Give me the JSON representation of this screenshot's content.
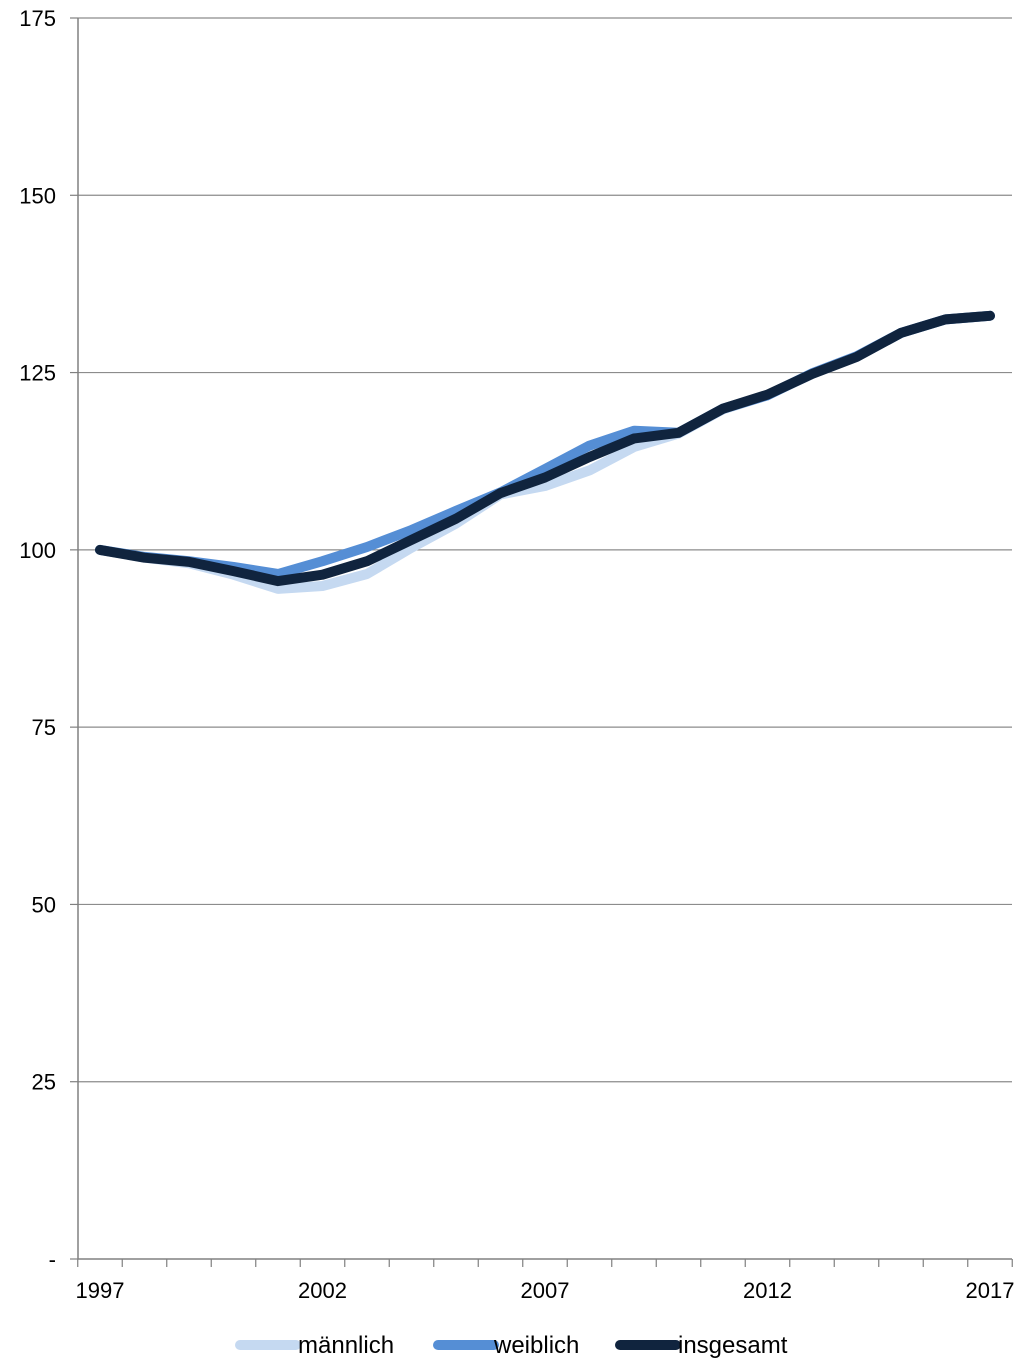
{
  "chart_data": {
    "type": "line",
    "x": [
      1997,
      1998,
      1999,
      2000,
      2001,
      2002,
      2003,
      2004,
      2005,
      2006,
      2007,
      2008,
      2009,
      2010,
      2011,
      2012,
      2013,
      2014,
      2015,
      2016,
      2017
    ],
    "x_tick_labels": [
      "1997",
      "2002",
      "2007",
      "2012",
      "2017"
    ],
    "y_tick_values": [
      0,
      25,
      50,
      75,
      100,
      125,
      150,
      175
    ],
    "y_tick_labels": [
      "-",
      "25",
      "50",
      "75",
      "100",
      "125",
      "150",
      "175"
    ],
    "ylim": [
      0,
      175
    ],
    "xlabel": "",
    "ylabel": "",
    "title": "",
    "grid": "horizontal",
    "legend_position": "bottom",
    "series": [
      {
        "name": "männlich",
        "color": "#c5d9f1",
        "values": [
          100,
          98.9,
          98.1,
          96.5,
          94.5,
          94.9,
          96.6,
          100.3,
          103.7,
          107.8,
          109.0,
          111.2,
          114.5,
          116.4,
          119.8,
          121.8,
          124.8,
          127.2,
          130.6,
          132.5,
          133.0
        ]
      },
      {
        "name": "weiblich",
        "color": "#558ed5",
        "values": [
          100,
          99.0,
          98.4,
          97.6,
          96.6,
          98.4,
          100.4,
          102.8,
          105.5,
          108.1,
          111.4,
          114.7,
          116.8,
          116.5,
          119.9,
          121.8,
          124.9,
          127.3,
          130.6,
          132.5,
          133.0
        ]
      },
      {
        "name": "insgesamt",
        "color": "#10243e",
        "values": [
          100,
          98.9,
          98.3,
          97.0,
          95.6,
          96.5,
          98.4,
          101.4,
          104.4,
          108.0,
          110.2,
          113.1,
          115.7,
          116.5,
          119.9,
          121.9,
          124.8,
          127.2,
          130.6,
          132.5,
          133.0
        ]
      }
    ]
  }
}
